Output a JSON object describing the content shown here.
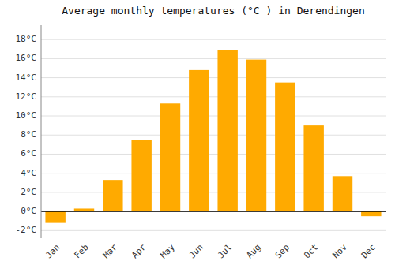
{
  "chart_data": {
    "type": "bar",
    "title": "Average monthly temperatures (°C ) in Derendingen",
    "categories": [
      "Jan",
      "Feb",
      "Mar",
      "Apr",
      "May",
      "Jun",
      "Jul",
      "Aug",
      "Sep",
      "Oct",
      "Nov",
      "Dec"
    ],
    "values": [
      -1.2,
      0.3,
      3.3,
      7.5,
      11.3,
      14.8,
      16.9,
      15.9,
      13.5,
      9.0,
      3.7,
      -0.5
    ],
    "color": "#FFAA00",
    "ylim": [
      -2.8,
      19.5
    ],
    "yticks": [
      {
        "value": -2,
        "label": "-2°C"
      },
      {
        "value": 0,
        "label": "0°C"
      },
      {
        "value": 2,
        "label": "2°C"
      },
      {
        "value": 4,
        "label": "4°C"
      },
      {
        "value": 6,
        "label": "6°C"
      },
      {
        "value": 8,
        "label": "8°C"
      },
      {
        "value": 10,
        "label": "10°C"
      },
      {
        "value": 12,
        "label": "12°C"
      },
      {
        "value": 14,
        "label": "14°C"
      },
      {
        "value": 16,
        "label": "16°C"
      },
      {
        "value": 18,
        "label": "18°C"
      }
    ],
    "grid": true
  }
}
